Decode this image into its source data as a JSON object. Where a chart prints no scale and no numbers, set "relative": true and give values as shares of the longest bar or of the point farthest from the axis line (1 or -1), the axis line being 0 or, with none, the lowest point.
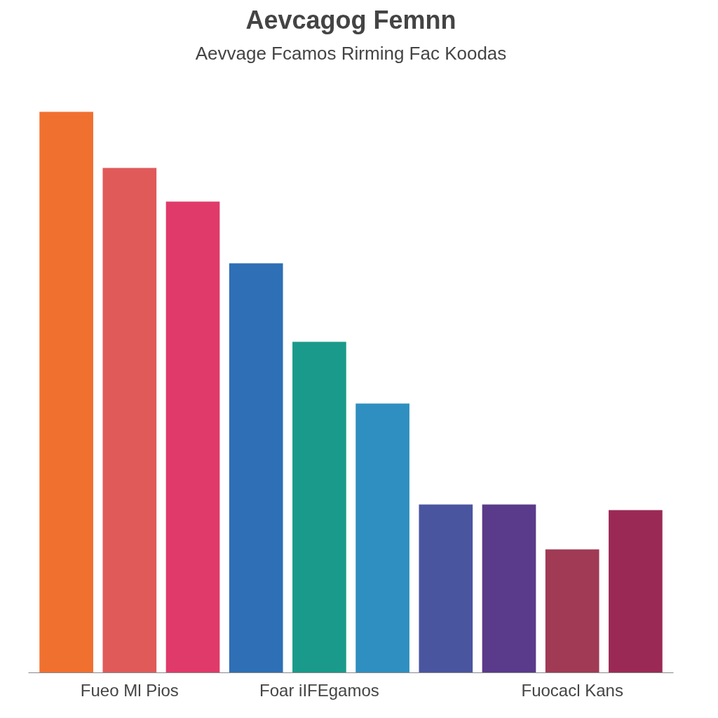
{
  "chart_data": {
    "type": "bar",
    "title": "Aevcagog Femnn",
    "subtitle": "Aevvage Fcamos Rirming Fac Koodas",
    "categories": [
      null,
      "Fueo Ml Pios",
      null,
      null,
      "Foar iIFEgamos",
      null,
      null,
      null,
      "Fuocacl Kans",
      null
    ],
    "values": [
      1,
      0.9,
      0.84,
      0.73,
      0.59,
      0.48,
      0.3,
      0.3,
      0.22,
      0.29
    ],
    "colors": [
      "#f07030",
      "#e05a5a",
      "#e03a6a",
      "#2f6fb5",
      "#1a9a8a",
      "#2f8fc0",
      "#4a55a0",
      "#5a3a8a",
      "#a03a55",
      "#9a2a55"
    ],
    "relative": true
  }
}
